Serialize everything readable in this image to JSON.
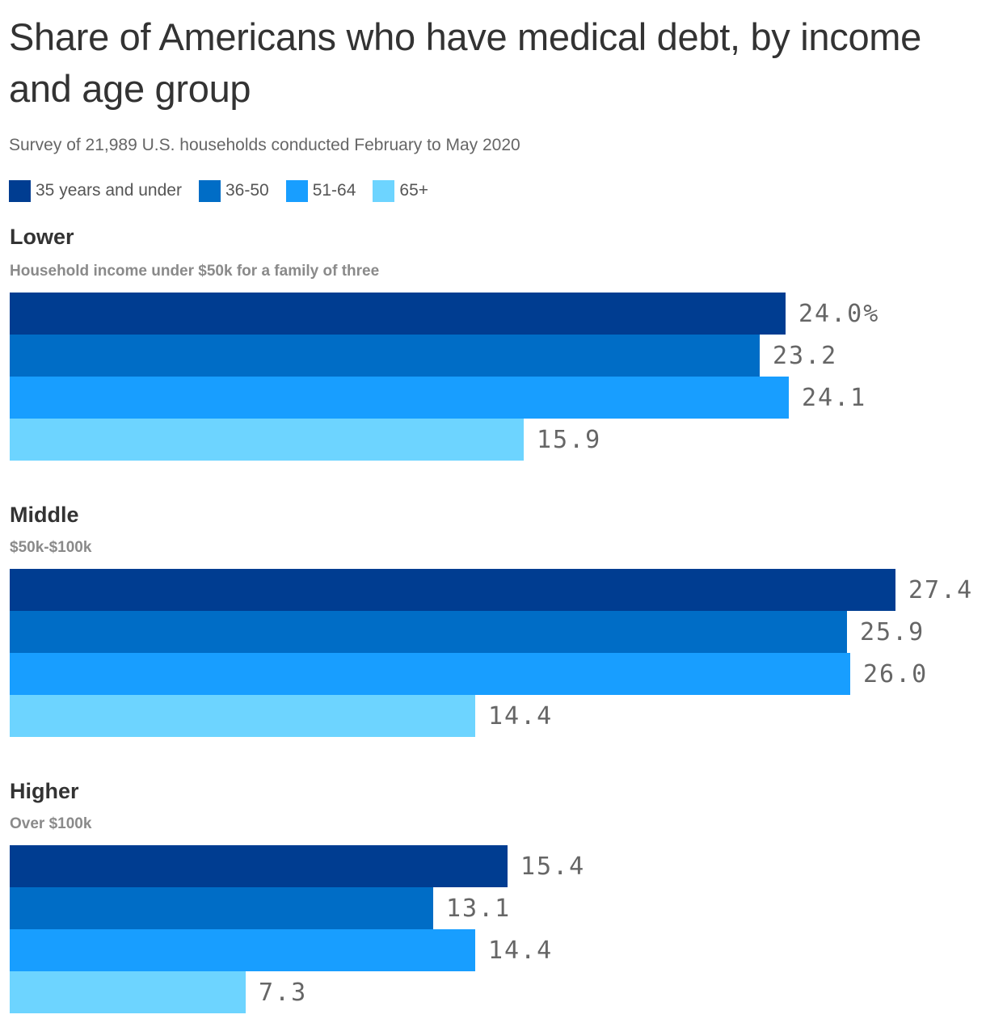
{
  "title": "Share of Americans who have medical debt, by income and age group",
  "subtitle": "Survey of 21,989 U.S. households conducted February to May 2020",
  "legend": [
    {
      "label": "35 years and under",
      "color": "#003d91"
    },
    {
      "label": "36-50",
      "color": "#006dc6"
    },
    {
      "label": "51-64",
      "color": "#189eff"
    },
    {
      "label": "65+",
      "color": "#6dd4ff"
    }
  ],
  "groups": [
    {
      "title": "Lower",
      "note": "Household income under $50k for a family of three"
    },
    {
      "title": "Middle",
      "note": "$50k-$100k"
    },
    {
      "title": "Higher",
      "note": "Over $100k"
    }
  ],
  "chart_data": {
    "type": "bar",
    "orientation": "horizontal",
    "title": "Share of Americans who have medical debt, by income and age group",
    "subtitle": "Survey of 21,989 U.S. households conducted February to May 2020",
    "categories": [
      "Lower",
      "Middle",
      "Higher"
    ],
    "series": [
      {
        "name": "35 years and under",
        "color": "#003d91",
        "values": [
          24.0,
          27.4,
          15.4
        ],
        "labels": [
          "24.0%",
          "27.4",
          "15.4"
        ]
      },
      {
        "name": "36-50",
        "color": "#006dc6",
        "values": [
          23.2,
          25.9,
          13.1
        ],
        "labels": [
          "23.2",
          "25.9",
          "13.1"
        ]
      },
      {
        "name": "51-64",
        "color": "#189eff",
        "values": [
          24.1,
          26.0,
          14.4
        ],
        "labels": [
          "24.1",
          "26.0",
          "14.4"
        ]
      },
      {
        "name": "65+",
        "color": "#6dd4ff",
        "values": [
          15.9,
          14.4,
          7.3
        ],
        "labels": [
          "15.9",
          "14.4",
          "7.3"
        ]
      }
    ],
    "unit": "%",
    "xlim": [
      0,
      27.4
    ],
    "grid": false,
    "legend_position": "top-left"
  }
}
